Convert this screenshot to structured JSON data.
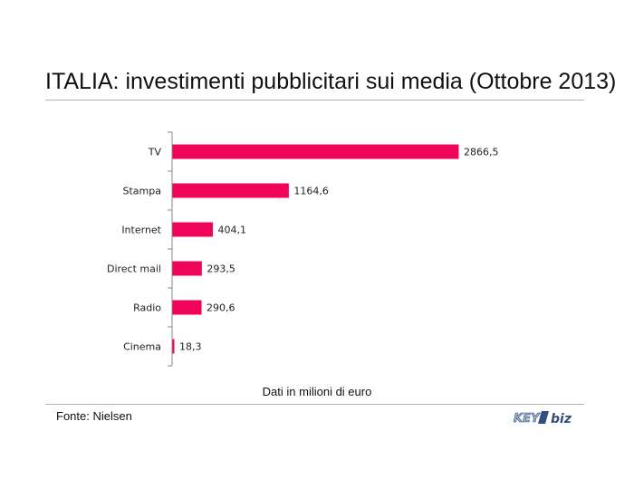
{
  "title": "ITALIA: investimenti pubblicitari sui media (Ottobre 2013)",
  "note": "Dati in milioni di euro",
  "source": "Fonte: Nielsen",
  "logo": {
    "text_main": "KEY",
    "text_sub": "biz"
  },
  "colors": {
    "bar": "#f0045a",
    "axis": "#888888",
    "rule": "#b5b5b5"
  },
  "chart_data": {
    "type": "bar",
    "orientation": "horizontal",
    "title": "ITALIA: investimenti pubblicitari sui media (Ottobre 2013)",
    "xlabel": "Dati in milioni di euro",
    "ylabel": "",
    "categories": [
      "TV",
      "Stampa",
      "Internet",
      "Direct mail",
      "Radio",
      "Cinema"
    ],
    "values": [
      2866.5,
      1164.6,
      404.1,
      293.5,
      290.6,
      18.3
    ],
    "value_labels": [
      "2866,5",
      "1164,6",
      "404,1",
      "293,5",
      "290,6",
      "18,3"
    ],
    "xlim": [
      0,
      2866.5
    ],
    "grid": false,
    "legend": "none"
  }
}
